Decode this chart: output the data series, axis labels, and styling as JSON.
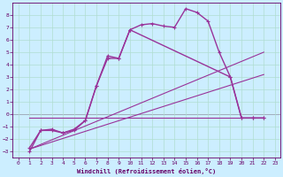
{
  "xlabel": "Windchill (Refroidissement éolien,°C)",
  "background_color": "#cceeff",
  "grid_color": "#b0ddd0",
  "ylim": [
    -3.5,
    9.0
  ],
  "xlim": [
    -0.5,
    23.5
  ],
  "yticks": [
    -3,
    -2,
    -1,
    0,
    1,
    2,
    3,
    4,
    5,
    6,
    7,
    8
  ],
  "xticks": [
    0,
    1,
    2,
    3,
    4,
    5,
    6,
    7,
    8,
    9,
    10,
    11,
    12,
    13,
    14,
    15,
    16,
    17,
    18,
    19,
    20,
    21,
    22,
    23
  ],
  "series": [
    {
      "x": [
        1,
        2,
        3,
        4,
        5,
        6,
        7,
        8,
        9,
        10,
        11,
        12,
        13,
        14,
        15,
        16,
        17,
        18,
        19,
        20,
        21,
        22
      ],
      "y": [
        -2.7,
        -1.3,
        -1.2,
        -1.5,
        -1.2,
        -0.5,
        2.3,
        4.7,
        4.5,
        6.8,
        7.2,
        7.3,
        7.1,
        7.0,
        8.5,
        8.2,
        7.5,
        5.0,
        3.0,
        -0.3,
        -0.3,
        -0.3
      ],
      "color": "#993399",
      "lw": 1.0,
      "marker": "+",
      "ms": 3
    },
    {
      "x": [
        1,
        2,
        3,
        4,
        5,
        6,
        7,
        8,
        9,
        10,
        19,
        20,
        21,
        22
      ],
      "y": [
        -3.0,
        -1.3,
        -1.3,
        -1.5,
        -1.3,
        -0.5,
        2.3,
        4.5,
        4.5,
        6.8,
        3.0,
        -0.3,
        -0.3,
        -0.3
      ],
      "color": "#993399",
      "lw": 1.0,
      "marker": "+",
      "ms": 3
    },
    {
      "x": [
        1,
        22
      ],
      "y": [
        -0.3,
        -0.3
      ],
      "color": "#993399",
      "lw": 0.8,
      "marker": null,
      "ms": 0
    },
    {
      "x": [
        1,
        22
      ],
      "y": [
        -2.8,
        3.2
      ],
      "color": "#993399",
      "lw": 0.8,
      "marker": null,
      "ms": 0
    },
    {
      "x": [
        1,
        22
      ],
      "y": [
        -2.8,
        5.0
      ],
      "color": "#993399",
      "lw": 0.8,
      "marker": null,
      "ms": 0
    }
  ]
}
